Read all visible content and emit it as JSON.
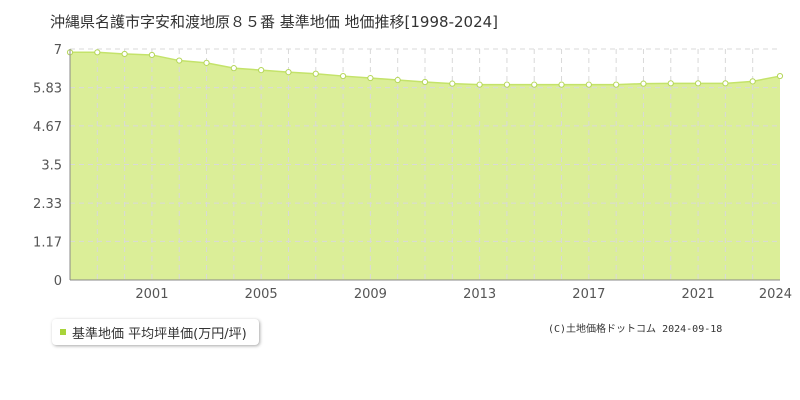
{
  "title": "沖縄県名護市字安和渡地原８５番 基準地価 地価推移[1998-2024]",
  "legend_label": "基準地価 平均坪単価(万円/坪)",
  "credit": "(C)土地価格ドットコム 2024-09-18",
  "colors": {
    "fill": "#dbee98",
    "line": "#c4e36a",
    "marker_fill": "#ffffff",
    "marker_stroke": "#b5d65a",
    "grid": "#d9d9d9",
    "axis": "#888888",
    "legend_swatch": "#a8d43a"
  },
  "chart_data": {
    "type": "area",
    "title": "沖縄県名護市字安和渡地原８５番 基準地価 地価推移[1998-2024]",
    "xlabel": "",
    "ylabel": "",
    "x": [
      1998,
      1999,
      2000,
      2001,
      2002,
      2003,
      2004,
      2005,
      2006,
      2007,
      2008,
      2009,
      2010,
      2011,
      2012,
      2013,
      2014,
      2015,
      2016,
      2017,
      2018,
      2019,
      2020,
      2021,
      2022,
      2023,
      2024
    ],
    "series": [
      {
        "name": "基準地価 平均坪単価(万円/坪)",
        "values": [
          6.9,
          6.9,
          6.85,
          6.82,
          6.65,
          6.58,
          6.42,
          6.36,
          6.3,
          6.25,
          6.18,
          6.12,
          6.06,
          6.0,
          5.95,
          5.92,
          5.92,
          5.92,
          5.92,
          5.92,
          5.92,
          5.95,
          5.96,
          5.96,
          5.96,
          6.02,
          6.18
        ]
      }
    ],
    "xlim": [
      1998,
      2024
    ],
    "ylim": [
      0,
      7
    ],
    "yticks": [
      "0",
      "1.17",
      "2.33",
      "3.5",
      "4.67",
      "5.83",
      "7"
    ],
    "ytick_values": [
      0,
      1.17,
      2.33,
      3.5,
      4.67,
      5.83,
      7
    ],
    "xtick_labels": [
      "2001",
      "2005",
      "2009",
      "2013",
      "2017",
      "2021",
      "2024"
    ],
    "xtick_values": [
      2001,
      2005,
      2009,
      2013,
      2017,
      2021,
      2024
    ],
    "grid": true,
    "legend_position": "bottom-left"
  }
}
